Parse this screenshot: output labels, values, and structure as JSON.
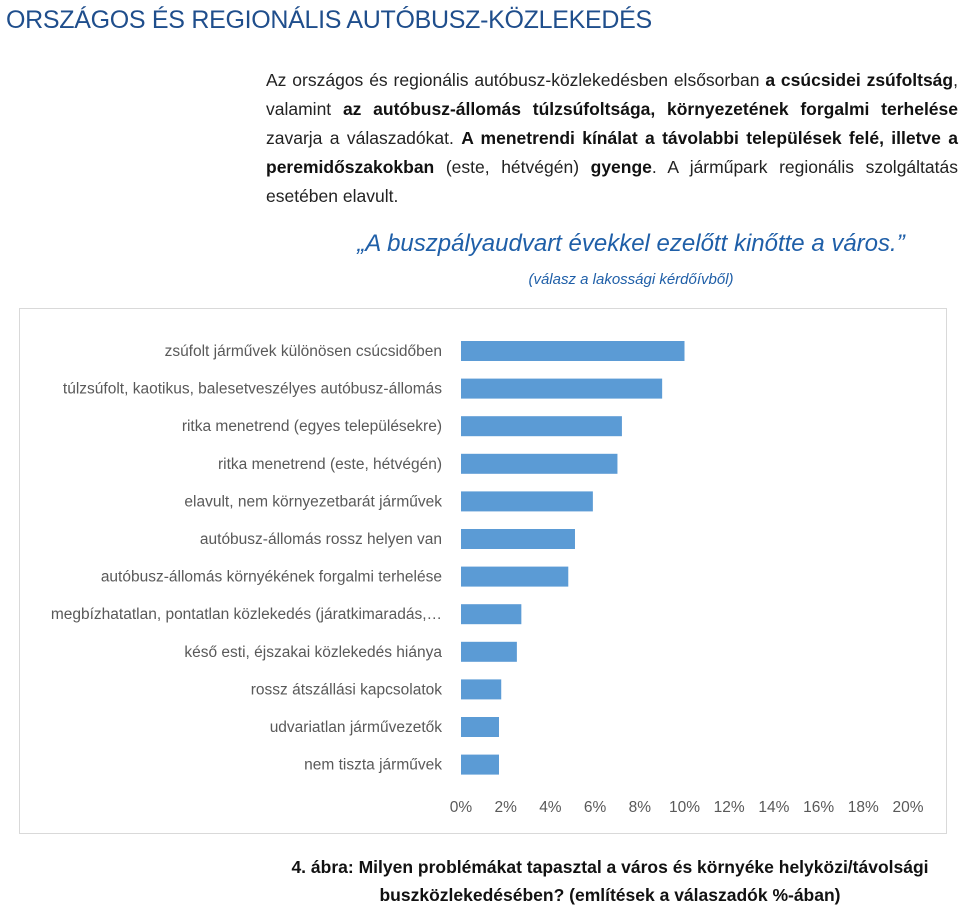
{
  "page": {
    "title": "ORSZÁGOS ÉS REGIONÁLIS AUTÓBUSZ-KÖZLEKEDÉS"
  },
  "intro": [
    {
      "t": "Az országos és regionális autóbusz-közlekedésben elsősorban ",
      "b": false
    },
    {
      "t": "a csúcsidei zsúfoltság",
      "b": true
    },
    {
      "t": ", valamint ",
      "b": false
    },
    {
      "t": "az autóbusz-állomás túlzsúfoltsága, környezetének forgalmi terhelése",
      "b": true
    },
    {
      "t": " zavarja a válaszadókat. ",
      "b": false
    },
    {
      "t": "A menetrendi kínálat a távolabbi települések felé, illetve a peremidőszakokban",
      "b": true
    },
    {
      "t": " (este, hétvégén) ",
      "b": false
    },
    {
      "t": "gyenge",
      "b": true
    },
    {
      "t": ". A járműpark regionális szolgáltatás esetében elavult.",
      "b": false
    }
  ],
  "quote": {
    "text": "„A buszpályaudvart évekkel ezelőtt kinőtte a város.”",
    "source": "(válasz a lakossági kérdőívből)"
  },
  "caption": {
    "line1": "4. ábra: Milyen problémákat tapasztal a város és környéke helyközi/távolsági",
    "line2": "buszközlekedésében? (említések a válaszadók %-ában)"
  },
  "colors": {
    "bar": "#5b9bd5",
    "title": "#1f4e8c",
    "quote": "#1f5fa8",
    "axis_text": "#595959"
  },
  "chart_data": {
    "type": "bar",
    "orientation": "horizontal",
    "categories": [
      "zsúfolt járművek különösen csúcsidőben",
      "túlzsúfolt, kaotikus, balesetveszélyes autóbusz-állomás",
      "ritka menetrend (egyes településekre)",
      "ritka menetrend (este, hétvégén)",
      "elavult, nem környezetbarát járművek",
      "autóbusz-állomás rossz helyen van",
      "autóbusz-állomás környékének forgalmi terhelése",
      "megbízhatatlan, pontatlan közlekedés (járatkimaradás,…",
      "késő esti, éjszakai közlekedés hiánya",
      "rossz átszállási kapcsolatok",
      "udvariatlan járművezetők",
      "nem tiszta járművek"
    ],
    "values": [
      10.0,
      9.0,
      7.2,
      7.0,
      5.9,
      5.1,
      4.8,
      2.7,
      2.5,
      1.8,
      1.7,
      1.7
    ],
    "ticks": [
      "0%",
      "2%",
      "4%",
      "6%",
      "8%",
      "10%",
      "12%",
      "14%",
      "16%",
      "18%",
      "20%"
    ],
    "xlim": [
      0,
      20
    ],
    "unit": "%",
    "grid": false,
    "legend": "none"
  }
}
